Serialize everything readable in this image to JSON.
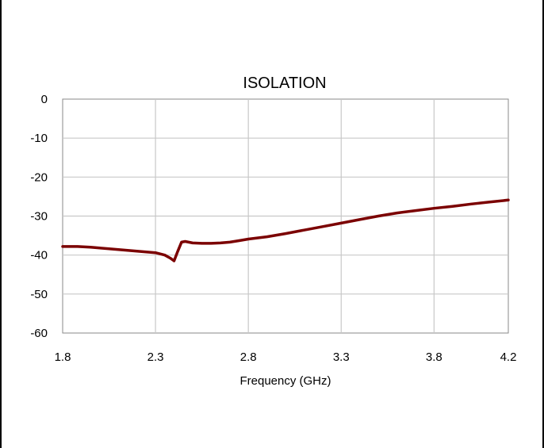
{
  "chart_data": {
    "type": "line",
    "title": "ISOLATION",
    "xlabel": "Frequency (GHz)",
    "ylabel": "",
    "xlim": [
      1.8,
      4.2
    ],
    "ylim": [
      -60,
      0
    ],
    "x_ticks": [
      "1.8",
      "2.3",
      "2.8",
      "3.3",
      "3.8",
      "4.2"
    ],
    "y_ticks": [
      "0",
      "-10",
      "-20",
      "-30",
      "-40",
      "-50",
      "-60"
    ],
    "x_tick_values": [
      1.8,
      2.3,
      2.8,
      3.3,
      3.8,
      4.2
    ],
    "y_tick_values": [
      0,
      -10,
      -20,
      -30,
      -40,
      -50,
      -60
    ],
    "grid": true,
    "legend": "none",
    "series": [
      {
        "color": "#7b0000",
        "points": [
          [
            1.8,
            -37.8
          ],
          [
            1.88,
            -37.8
          ],
          [
            1.95,
            -38.0
          ],
          [
            2.0,
            -38.2
          ],
          [
            2.05,
            -38.4
          ],
          [
            2.1,
            -38.6
          ],
          [
            2.15,
            -38.8
          ],
          [
            2.2,
            -39.0
          ],
          [
            2.25,
            -39.2
          ],
          [
            2.3,
            -39.4
          ],
          [
            2.35,
            -40.0
          ],
          [
            2.38,
            -40.8
          ],
          [
            2.4,
            -41.5
          ],
          [
            2.42,
            -39.0
          ],
          [
            2.44,
            -36.7
          ],
          [
            2.46,
            -36.5
          ],
          [
            2.5,
            -36.9
          ],
          [
            2.55,
            -37.0
          ],
          [
            2.6,
            -37.0
          ],
          [
            2.65,
            -36.9
          ],
          [
            2.7,
            -36.7
          ],
          [
            2.75,
            -36.3
          ],
          [
            2.8,
            -35.9
          ],
          [
            2.9,
            -35.3
          ],
          [
            3.0,
            -34.5
          ],
          [
            3.1,
            -33.6
          ],
          [
            3.2,
            -32.7
          ],
          [
            3.3,
            -31.8
          ],
          [
            3.4,
            -30.9
          ],
          [
            3.5,
            -30.0
          ],
          [
            3.6,
            -29.2
          ],
          [
            3.7,
            -28.6
          ],
          [
            3.8,
            -28.0
          ],
          [
            3.9,
            -27.5
          ],
          [
            4.0,
            -26.9
          ],
          [
            4.1,
            -26.4
          ],
          [
            4.2,
            -25.9
          ]
        ]
      }
    ]
  }
}
